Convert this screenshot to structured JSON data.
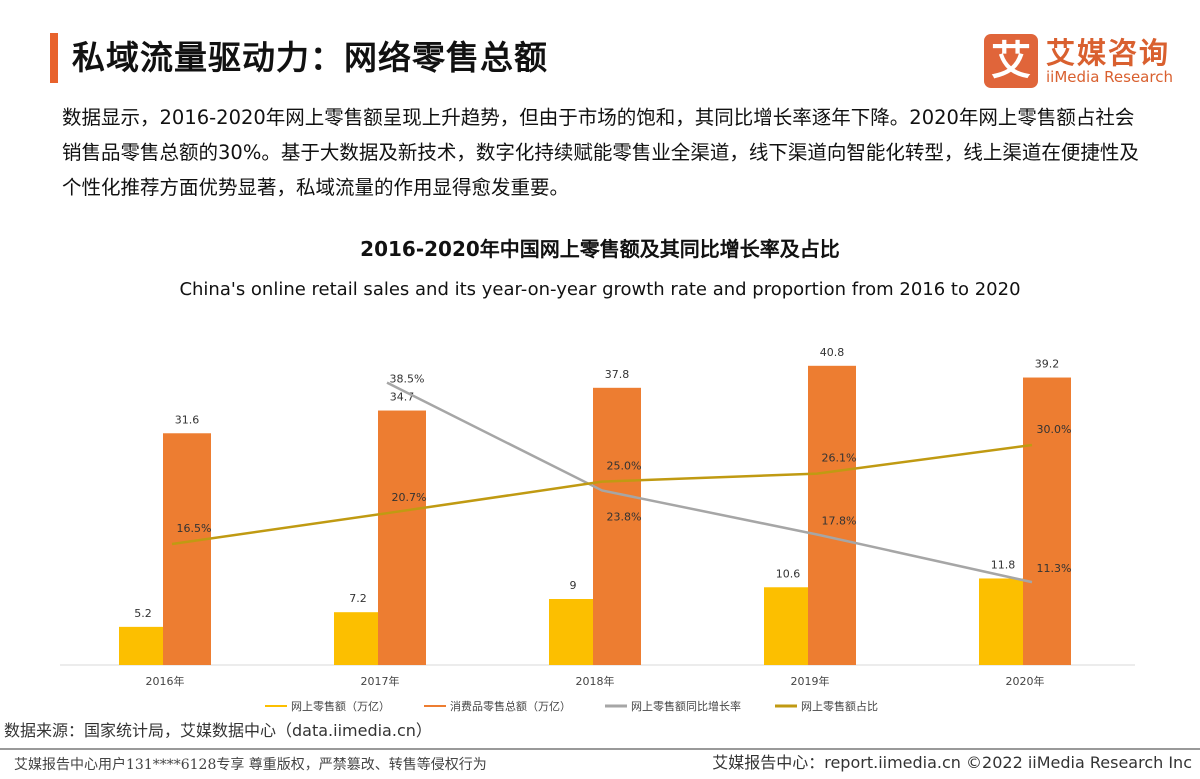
{
  "header": {
    "title": "私域流量驱动力：网络零售总额",
    "logo_icon": "艾",
    "logo_cn": "艾媒咨询",
    "logo_en": "iiMedia Research"
  },
  "description": "数据显示，2016-2020年网上零售额呈现上升趋势，但由于市场的饱和，其同比增长率逐年下降。2020年网上零售额占社会销售品零售总额的30%。基于大数据及新技术，数字化持续赋能零售业全渠道，线下渠道向智能化转型，线上渠道在便捷性及个性化推荐方面优势显著，私域流量的作用显得愈发重要。",
  "chart_data": {
    "type": "bar",
    "title": "2016-2020年中国网上零售额及其同比增长率及占比",
    "subtitle": "China's online retail sales and its year-on-year growth rate and proportion from 2016  to 2020",
    "categories": [
      "2016年",
      "2017年",
      "2018年",
      "2019年",
      "2020年"
    ],
    "ylim": [
      0,
      45
    ],
    "y2lim": [
      0,
      45
    ],
    "grid": false,
    "legend": "bottom",
    "series": [
      {
        "name": "网上零售额（万亿）",
        "type": "bar",
        "color": "#fcbf00",
        "values": [
          5.2,
          7.2,
          9,
          10.6,
          11.8
        ],
        "labels": [
          "5.2",
          "7.2",
          "9",
          "10.6",
          "11.8"
        ]
      },
      {
        "name": "消费品零售总额（万亿）",
        "type": "bar",
        "color": "#ed7d31",
        "values": [
          31.6,
          34.7,
          37.8,
          40.8,
          39.2
        ],
        "labels": [
          "31.6",
          "34.7",
          "37.8",
          "40.8",
          "39.2"
        ]
      },
      {
        "name": "网上零售额同比增长率",
        "type": "line",
        "axis": "secondary",
        "color": "#a6a6a6",
        "values": [
          null,
          38.5,
          23.8,
          17.8,
          11.3
        ],
        "labels": [
          "",
          "38.5%",
          "23.8%",
          "17.8%",
          "11.3%"
        ]
      },
      {
        "name": "网上零售额占比",
        "type": "line",
        "axis": "secondary",
        "color": "#c09a12",
        "values": [
          16.5,
          20.7,
          25.0,
          26.1,
          30.0
        ],
        "labels": [
          "16.5%",
          "20.7%",
          "25.0%",
          "26.1%",
          "30.0%"
        ]
      }
    ]
  },
  "source": "数据来源：国家统计局，艾媒数据中心（data.iimedia.cn）",
  "footer": {
    "left": "艾媒报告中心用户131****6128专享 尊重版权，严禁篡改、转售等侵权行为",
    "right": "艾媒报告中心：report.iimedia.cn   ©2022  iiMedia Research  Inc"
  }
}
